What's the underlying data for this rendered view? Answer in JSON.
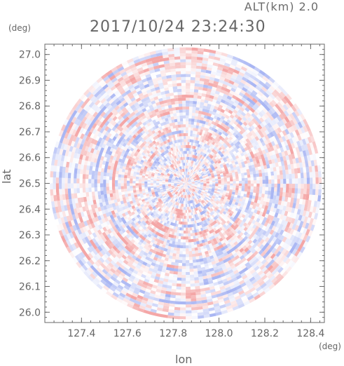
{
  "header": {
    "altitude": "ALT(km) 2.0",
    "datetime": "2017/10/24 23:24:30"
  },
  "axes": {
    "y_unit": "(deg)",
    "x_unit": "(deg)"
  },
  "colors": {
    "positive": "#f4a6a6",
    "negative": "#a9b6f3",
    "axis": "#6a6a6a"
  },
  "chart_data": {
    "type": "heatmap",
    "title": "",
    "xlabel": "lon",
    "ylabel": "lat",
    "xlim": [
      127.24,
      128.46
    ],
    "ylim": [
      25.96,
      27.04
    ],
    "xticks": [
      "127.4",
      "127.6",
      "127.8",
      "128.0",
      "128.2",
      "128.4"
    ],
    "xtick_values": [
      127.4,
      127.6,
      127.8,
      128.0,
      128.2,
      128.4
    ],
    "yticks": [
      "26.0",
      "26.1",
      "26.2",
      "26.3",
      "26.4",
      "26.5",
      "26.6",
      "26.7",
      "26.8",
      "26.9",
      "27.0"
    ],
    "ytick_values": [
      26.0,
      26.1,
      26.2,
      26.3,
      26.4,
      26.5,
      26.6,
      26.7,
      26.8,
      26.9,
      27.0
    ],
    "radar_center": {
      "lon": 127.855,
      "lat": 26.5
    },
    "coverage_edge": {
      "lon_min": 127.26,
      "lon_max": 128.45,
      "lat_min": 25.975,
      "lat_max": 27.03
    },
    "colorscale": {
      "positive": "red",
      "negative": "blue",
      "zero": "white"
    },
    "grid": false
  }
}
